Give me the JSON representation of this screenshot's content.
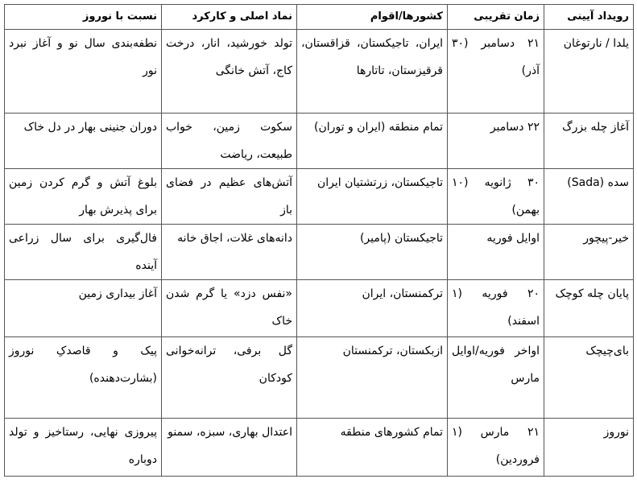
{
  "headers": [
    "رویداد آیینی",
    "زمان تقریبی",
    "کشورها/اقوام",
    "نماد اصلی و کارکرد",
    "نسبت با نوروز"
  ],
  "rows": [
    [
      "یلدا / نارتوغان",
      "۲۱ دسامبر (۳۰ آذر)",
      "ایران، تاجیکستان، قزاقستان، قرقیزستان، تاتارها",
      "تولد خورشید، انار، درخت کاج، آتش خانگی",
      "نطفه‌بندی سال نو و آغاز نبرد نور"
    ],
    [
      "آغاز چله بزرگ",
      "۲۲ دسامبر",
      "تمام منطقه (ایران و توران)",
      "سکوت زمین، خواب طبیعت، ریاضت",
      "دوران جنینی بهار در دل خاک"
    ],
    [
      "سده (Sada)",
      "۳۰ ژانویه (۱۰ بهمن)",
      "تاجیکستان، زرتشتیان ایران",
      "آتش‌های عظیم در فضای باز",
      "بلوغ آتش و گرم کردن زمین برای پذیرش بهار"
    ],
    [
      "خیر-پیچور",
      "اوایل فوریه",
      "تاجیکستان (پامیر)",
      "دانه‌های غلات، اجاق خانه",
      "فال‌گیری برای سال زراعی آینده"
    ],
    [
      "پایان چله کوچک",
      "۲۰ فوریه (۱ اسفند)",
      "ترکمنستان، ایران",
      "«نفس دزد» یا گرم شدن خاک",
      "آغاز بیداری زمین"
    ],
    [
      "بای‌چیچک",
      "اواخر فوریه/اوایل مارس",
      "ازبکستان، ترکمنستان",
      "گل برفی، ترانه‌خوانی کودکان",
      "پیک و قاصدکِ نوروز (بشارت‌دهنده)"
    ],
    [
      "نوروز",
      "۲۱ مارس (۱ فروردین)",
      "تمام کشورهای منطقه",
      "اعتدال بهاری، سبزه، سمنو",
      "پیروزی نهایی، رستاخیز و تولد دوباره"
    ]
  ]
}
